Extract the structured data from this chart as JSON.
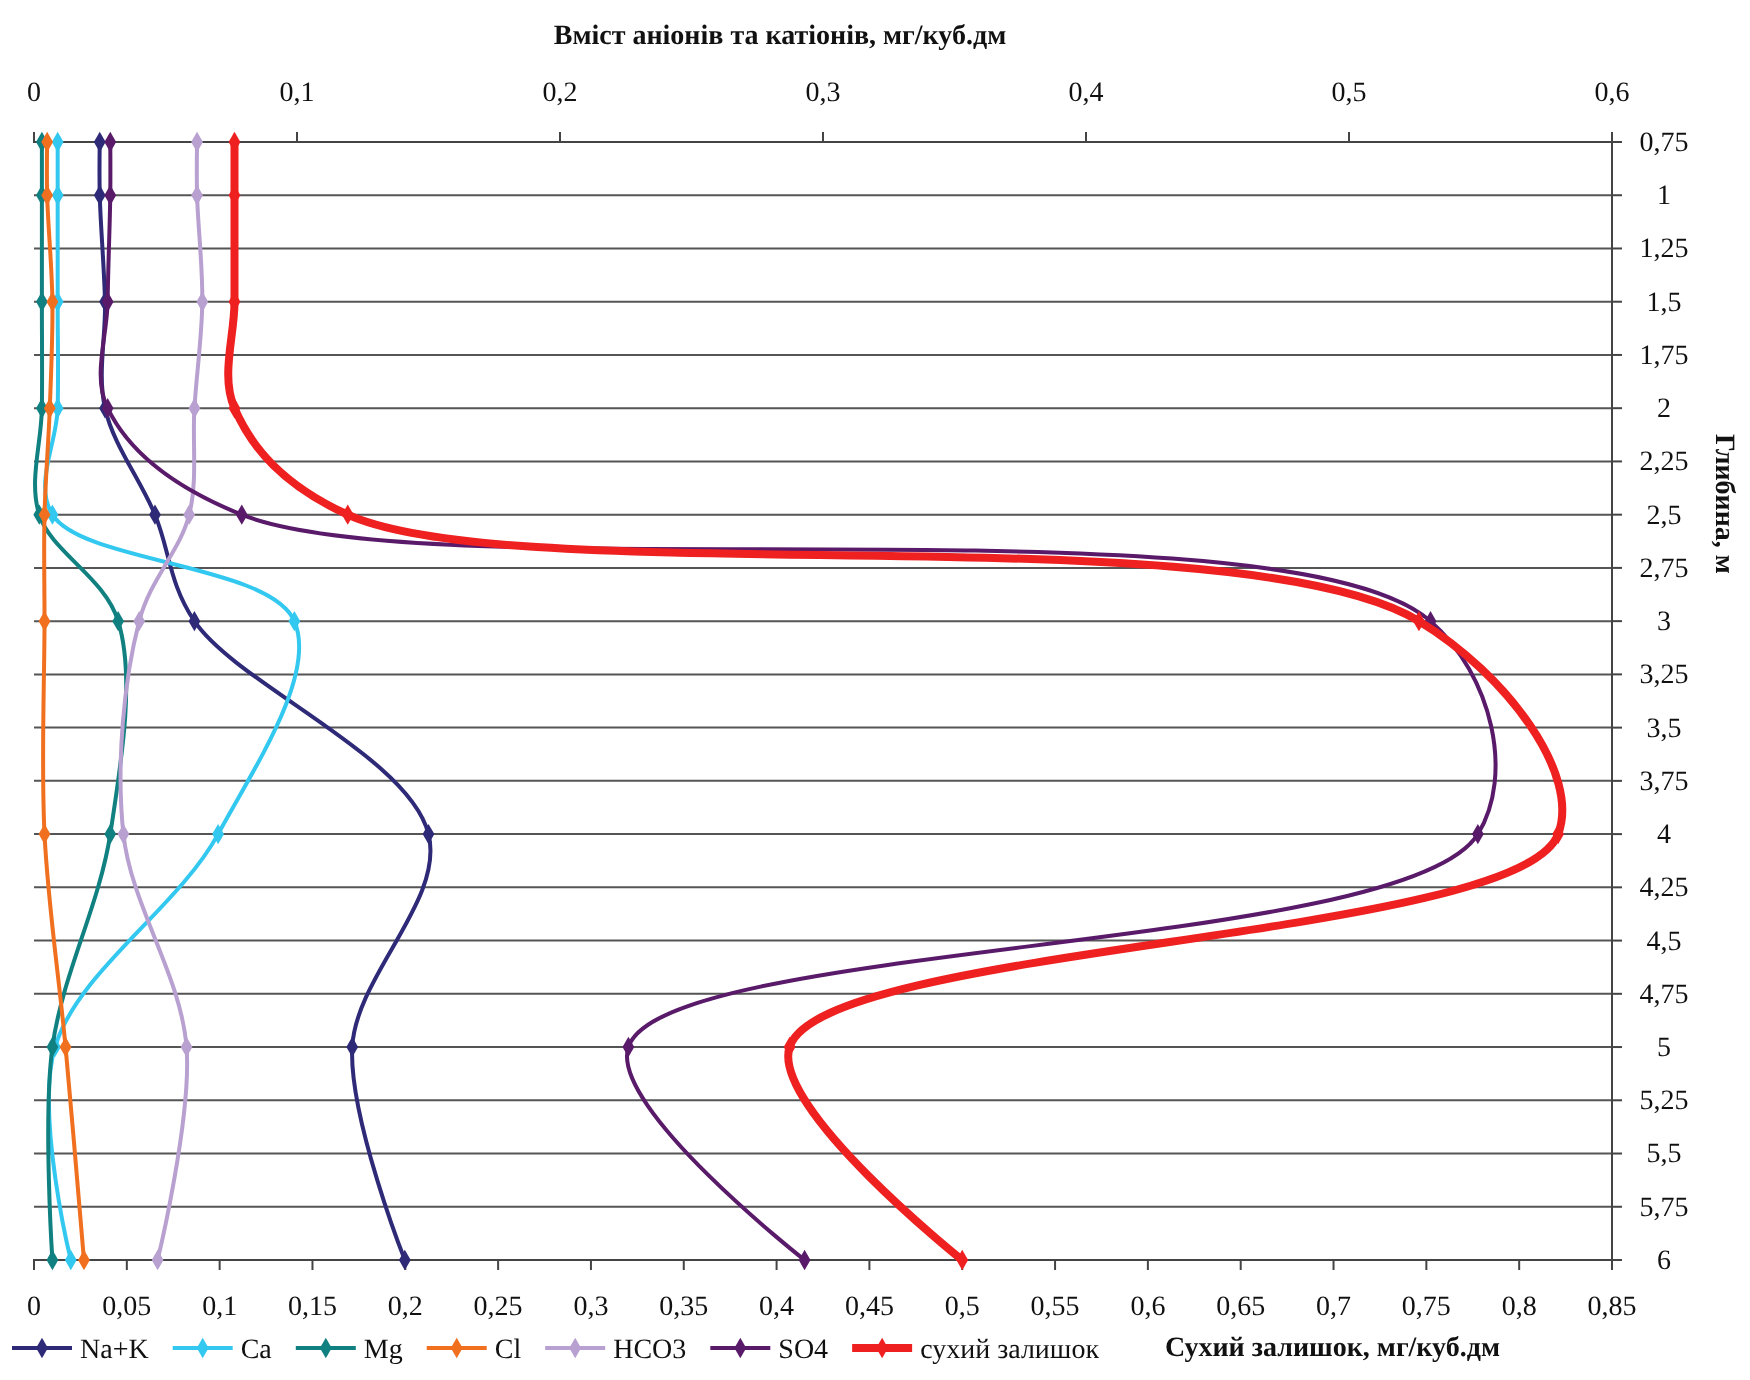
{
  "chart_data": {
    "type": "line",
    "orientation": "horizontal",
    "x2label": "Вміст аніонів та катіонів, мг/куб.дм",
    "xlabel": "Сухий залишок, мг/куб.дм",
    "ylabel": "Глибина, м",
    "x": [
      0.75,
      1,
      1.5,
      2,
      2.5,
      3,
      4,
      5,
      6
    ],
    "series": [
      {
        "name": "Na+K",
        "color": "#2e2a78",
        "axis": "x2",
        "values": [
          0.025,
          0.025,
          0.027,
          0.027,
          0.046,
          0.061,
          0.15,
          0.121,
          0.141
        ]
      },
      {
        "name": "Ca",
        "color": "#33c8f0",
        "axis": "x2",
        "values": [
          0.009,
          0.009,
          0.009,
          0.009,
          0.007,
          0.099,
          0.07,
          0.008,
          0.014
        ]
      },
      {
        "name": "Mg",
        "color": "#108080",
        "axis": "x2",
        "values": [
          0.003,
          0.003,
          0.003,
          0.003,
          0.002,
          0.032,
          0.029,
          0.007,
          0.007
        ]
      },
      {
        "name": "Cl",
        "color": "#f07020",
        "axis": "x2",
        "values": [
          0.005,
          0.005,
          0.007,
          0.006,
          0.004,
          0.004,
          0.004,
          0.012,
          0.019
        ]
      },
      {
        "name": "HCO3",
        "color": "#b8a0d0",
        "axis": "x2",
        "values": [
          0.062,
          0.062,
          0.064,
          0.061,
          0.059,
          0.04,
          0.034,
          0.058,
          0.047
        ]
      },
      {
        "name": "SO4",
        "color": "#5a1a6a",
        "axis": "x2",
        "values": [
          0.029,
          0.029,
          0.028,
          0.028,
          0.079,
          0.531,
          0.549,
          0.226,
          0.293
        ]
      },
      {
        "name": "сухий залишок",
        "color": "#ee2020",
        "values": [
          0.108,
          0.108,
          0.108,
          0.108,
          0.169,
          0.746,
          0.821,
          0.407,
          0.5
        ]
      }
    ],
    "xlim": [
      0,
      0.85
    ],
    "xticks": [
      0,
      {
        "value": 0.05,
        "label": "0,05"
      },
      {
        "value": 0.1,
        "label": "0,1"
      },
      {
        "value": 0.15,
        "label": "0,15"
      },
      {
        "value": 0.2,
        "label": "0,2"
      },
      {
        "value": 0.25,
        "label": "0,25"
      },
      {
        "value": 0.3,
        "label": "0,3"
      },
      {
        "value": 0.35,
        "label": "0,35"
      },
      {
        "value": 0.4,
        "label": "0,4"
      },
      {
        "value": 0.45,
        "label": "0,45"
      },
      {
        "value": 0.5,
        "label": "0,5"
      },
      {
        "value": 0.55,
        "label": "0,55"
      },
      {
        "value": 0.6,
        "label": "0,6"
      },
      {
        "value": 0.65,
        "label": "0,65"
      },
      {
        "value": 0.7,
        "label": "0,7"
      },
      {
        "value": 0.75,
        "label": "0,75"
      },
      {
        "value": 0.8,
        "label": "0,8"
      },
      {
        "value": 0.85,
        "label": "0,85"
      }
    ],
    "x2lim": [
      0,
      0.6
    ],
    "x2ticks": [
      0,
      {
        "value": 0.1,
        "label": "0,1"
      },
      {
        "value": 0.2,
        "label": "0,2"
      },
      {
        "value": 0.3,
        "label": "0,3"
      },
      {
        "value": 0.4,
        "label": "0,4"
      },
      {
        "value": 0.5,
        "label": "0,5"
      },
      {
        "value": 0.6,
        "label": "0,6"
      }
    ],
    "ylim": [
      6,
      0.75
    ],
    "yticks": [
      {
        "value": 0.75,
        "label": "0,75"
      },
      1,
      {
        "value": 1.25,
        "label": "1,25"
      },
      {
        "value": 1.5,
        "label": "1,5"
      },
      {
        "value": 1.75,
        "label": "1,75"
      },
      2,
      {
        "value": 2.25,
        "label": "2,25"
      },
      {
        "value": 2.5,
        "label": "2,5"
      },
      {
        "value": 2.75,
        "label": "2,75"
      },
      3,
      {
        "value": 3.25,
        "label": "3,25"
      },
      {
        "value": 3.5,
        "label": "3,5"
      },
      {
        "value": 3.75,
        "label": "3,75"
      },
      4,
      {
        "value": 4.25,
        "label": "4,25"
      },
      {
        "value": 4.5,
        "label": "4,5"
      },
      {
        "value": 4.75,
        "label": "4,75"
      },
      5,
      {
        "value": 5.25,
        "label": "5,25"
      },
      {
        "value": 5.5,
        "label": "5,5"
      },
      {
        "value": 5.75,
        "label": "5,75"
      },
      6
    ],
    "grid": "y",
    "legend": "bottom",
    "marker": "diamond",
    "line_style": "solid"
  }
}
